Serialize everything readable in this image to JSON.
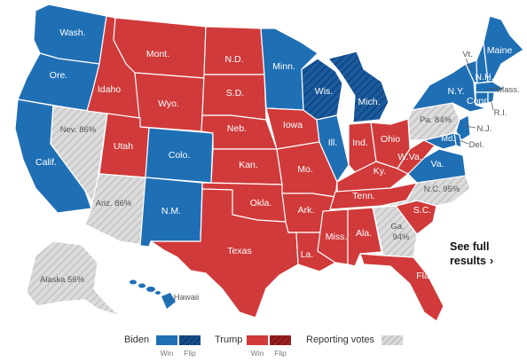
{
  "colors": {
    "biden": "#1f6fb5",
    "biden_flip": "#174e8a",
    "trump": "#d13a3a",
    "trump_flip": "#9e2020",
    "reporting": "#dcdcdc",
    "reporting_stripe": "#c3c3c3"
  },
  "states": {
    "wash": "Wash.",
    "ore": "Ore.",
    "calif": "Calif.",
    "nev": "Nev. 86%",
    "idaho": "Idaho",
    "mont": "Mont.",
    "wyo": "Wyo.",
    "utah": "Utah",
    "ariz": "Ariz. 86%",
    "colo": "Colo.",
    "nm": "N.M.",
    "nd": "N.D.",
    "sd": "S.D.",
    "neb": "Neb.",
    "kan": "Kan.",
    "okla": "Okla.",
    "texas": "Texas",
    "minn": "Minn.",
    "iowa": "Iowa",
    "mo": "Mo.",
    "ark": "Ark.",
    "la": "La.",
    "wis": "Wis.",
    "ill": "Ill.",
    "mich": "Mich.",
    "ind": "Ind.",
    "ohio": "Ohio",
    "ky": "Ky.",
    "tenn": "Tenn.",
    "miss": "Miss.",
    "ala": "Ala.",
    "ga": "Ga.",
    "ga_pct": "94%",
    "fla": "Fla.",
    "sc": "S.C.",
    "nc": "N.C. 95%",
    "va": "Va.",
    "wva": "W.Va.",
    "pa": "Pa. 84%",
    "ny": "N.Y.",
    "vt": "Vt.",
    "nh": "N.H.",
    "maine": "Maine",
    "mass": "Mass.",
    "ri": "R.I.",
    "conn": "Conn.",
    "nj": "N.J.",
    "del": "Del.",
    "md": "Md.",
    "alaska": "Alaska 56%",
    "hawaii": "Hawaii"
  },
  "cta": {
    "line1": "See full",
    "line2": "results",
    "chevron": "›"
  },
  "legend": {
    "biden": "Biden",
    "trump": "Trump",
    "reporting": "Reporting votes",
    "win": "Win",
    "flip": "Flip"
  }
}
